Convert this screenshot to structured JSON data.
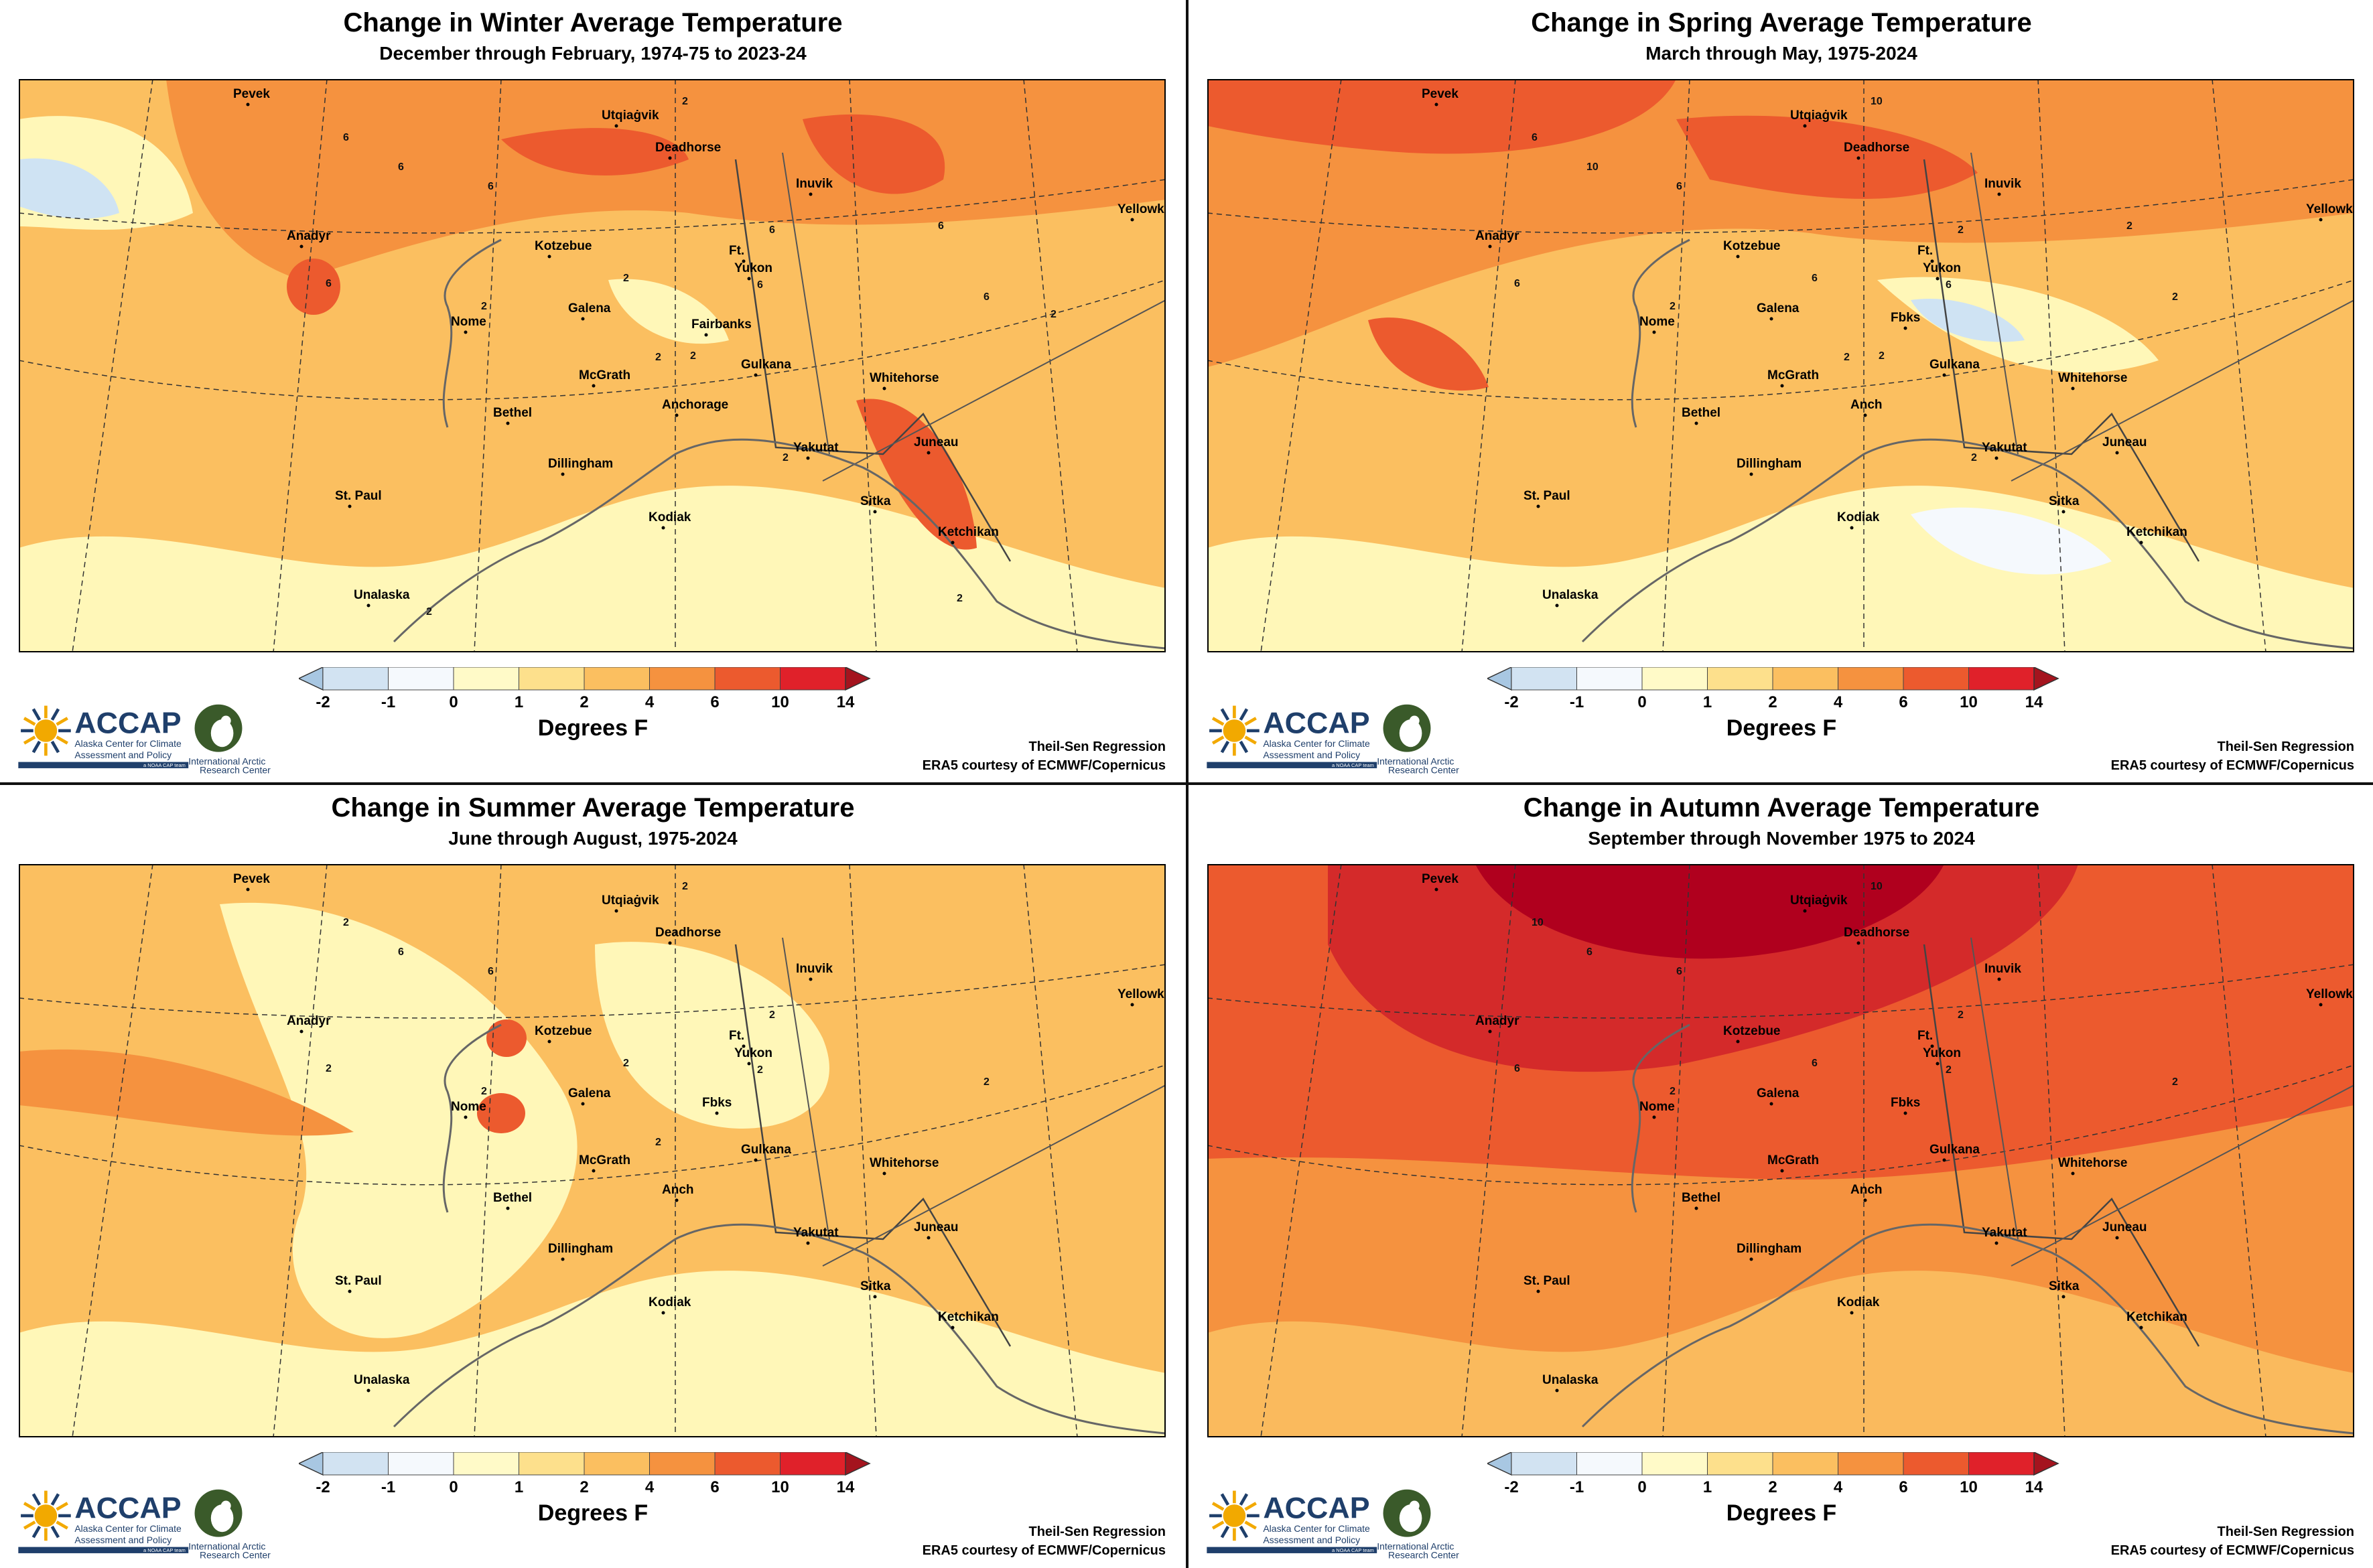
{
  "panels": [
    {
      "title": "Change in Winter Average Temperature",
      "subtitle": "December through February, 1974-75 to 2023-24",
      "places": [
        "Pevek",
        "Utqiaġvik",
        "Deadhorse",
        "Inuvik",
        "Yellowknife",
        "Anadyr",
        "Kotzebue",
        "Ft.",
        "Yukon",
        "Galena",
        "Fairbanks",
        "Nome",
        "McGrath",
        "Gulkana",
        "Whitehorse",
        "Bethel",
        "Anchorage",
        "Yakutat",
        "Juneau",
        "Dillingham",
        "St. Paul",
        "Kodiak",
        "Sitka",
        "Ketchikan",
        "Unalaska"
      ],
      "contour_labels": [
        "2",
        "6",
        "6",
        "6",
        "6",
        "6",
        "6",
        "6",
        "2",
        "2",
        "2",
        "2",
        "2",
        "6",
        "2",
        "2",
        "2"
      ],
      "colors": {
        "base": "#fbbf60",
        "warm": "#f5923f",
        "hot": "#ec5a2e",
        "cool": "#fff7b8",
        "cold": "#cfe3f3"
      }
    },
    {
      "title": "Change in Spring Average Temperature",
      "subtitle": "March through May, 1975-2024",
      "places": [
        "Pevek",
        "Utqiaġvik",
        "Deadhorse",
        "Inuvik",
        "Yellowknife",
        "Anadyr",
        "Kotzebue",
        "Ft.",
        "Yukon",
        "Galena",
        "Fbks",
        "Nome",
        "McGrath",
        "Gulkana",
        "Whitehorse",
        "Bethel",
        "Anch",
        "Yakutat",
        "Juneau",
        "Dillingham",
        "St. Paul",
        "Kodiak",
        "Sitka",
        "Ketchikan",
        "Unalaska"
      ],
      "contour_labels": [
        "10",
        "6",
        "6",
        "10",
        "6",
        "6",
        "2",
        "2",
        "6",
        "2",
        "2",
        "2",
        "2",
        "2"
      ],
      "colors": {
        "base": "#fbbf60",
        "warm": "#f5923f",
        "hot": "#ec5a2e",
        "cool": "#fff7b8",
        "cold": "#cfe3f3"
      }
    },
    {
      "title": "Change in Summer Average Temperature",
      "subtitle": "June through August, 1975-2024",
      "places": [
        "Pevek",
        "Utqiaġvik",
        "Deadhorse",
        "Inuvik",
        "Yellowknife",
        "Anadyr",
        "Kotzebue",
        "Ft.",
        "Yukon",
        "Galena",
        "Fbks",
        "Nome",
        "McGrath",
        "Gulkana",
        "Whitehorse",
        "Bethel",
        "Anch",
        "Yakutat",
        "Juneau",
        "Dillingham",
        "St. Paul",
        "Kodiak",
        "Sitka",
        "Ketchikan",
        "Unalaska"
      ],
      "contour_labels": [
        "2",
        "2",
        "6",
        "6",
        "2",
        "2",
        "2",
        "2",
        "2",
        "2",
        "2"
      ],
      "colors": {
        "base": "#fbbf60",
        "warm": "#f5923f",
        "hot": "#ec5a2e",
        "cool": "#fff7b8",
        "cold": "#cfe3f3"
      }
    },
    {
      "title": "Change in Autumn Average Temperature",
      "subtitle": "September through November 1975 to 2024",
      "places": [
        "Pevek",
        "Utqiaġvik",
        "Deadhorse",
        "Inuvik",
        "Yellowknife",
        "Anadyr",
        "Kotzebue",
        "Ft.",
        "Yukon",
        "Galena",
        "Fbks",
        "Nome",
        "McGrath",
        "Gulkana",
        "Whitehorse",
        "Bethel",
        "Anch",
        "Yakutat",
        "Juneau",
        "Dillingham",
        "St. Paul",
        "Kodiak",
        "Sitka",
        "Ketchikan",
        "Unalaska"
      ],
      "contour_labels": [
        "10",
        "10",
        "6",
        "6",
        "6",
        "2",
        "2",
        "2",
        "6",
        "2"
      ],
      "colors": {
        "base": "#f5923f",
        "warm": "#ec5a2e",
        "hot": "#d42a2a",
        "darkest": "#b0001e",
        "cool": "#fbbf60"
      }
    }
  ],
  "colorbar": {
    "ticks": [
      "-2",
      "-1",
      "0",
      "1",
      "2",
      "4",
      "6",
      "10",
      "14"
    ],
    "label": "Degrees F",
    "colors": [
      "#a8c7e2",
      "#d2e3f2",
      "#f5f9fd",
      "#fffac8",
      "#fde08c",
      "#fbbf60",
      "#f5923f",
      "#ec5a2e",
      "#e0212a",
      "#a4141e"
    ]
  },
  "credits": {
    "method": "Theil-Sen Regression",
    "source": "ERA5 courtesy of ECMWF/Copernicus"
  },
  "logo": {
    "name": "ACCAP",
    "line1": "Alaska Center for Climate",
    "line2": "Assessment and Policy",
    "tag": "a NOAA CAP team",
    "iarc1": "International Arctic",
    "iarc2": "Research Center"
  }
}
